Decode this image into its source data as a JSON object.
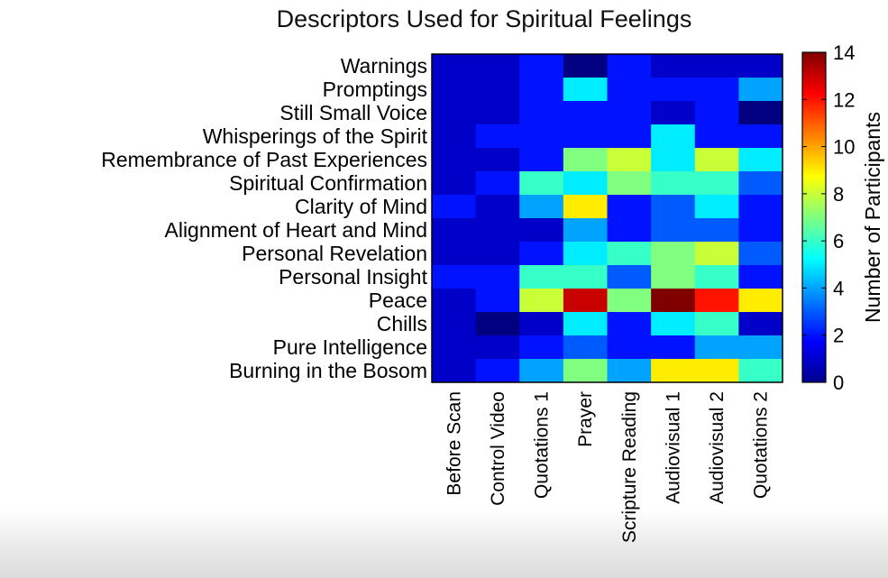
{
  "chart_data": {
    "type": "heatmap",
    "title": "Descriptors Used for Spiritual Feelings",
    "rows": [
      "Warnings",
      "Promptings",
      "Still Small Voice",
      "Whisperings of the Spirit",
      "Remembrance of Past Experiences",
      "Spiritual Confirmation",
      "Clarity of Mind",
      "Alignment of Heart and Mind",
      "Personal Revelation",
      "Personal Insight",
      "Peace",
      "Chills",
      "Pure Intelligence",
      "Burning in the Bosom"
    ],
    "columns": [
      "Before Scan",
      "Control Video",
      "Quotations 1",
      "Prayer",
      "Scripture Reading",
      "Audiovisual 1",
      "Audiovisual 2",
      "Quotations 2"
    ],
    "values": [
      [
        1,
        1,
        2,
        0,
        2,
        1,
        1,
        1
      ],
      [
        1,
        1,
        2,
        5,
        2,
        2,
        2,
        4
      ],
      [
        1,
        1,
        2,
        2,
        2,
        1,
        2,
        0
      ],
      [
        1,
        2,
        2,
        2,
        2,
        5,
        2,
        2
      ],
      [
        1,
        1,
        2,
        7,
        8,
        5,
        8,
        5
      ],
      [
        1,
        2,
        6,
        5,
        7,
        6,
        6,
        3
      ],
      [
        2,
        1,
        4,
        9,
        2,
        3,
        5,
        2
      ],
      [
        1,
        1,
        1,
        4,
        2,
        3,
        3,
        2
      ],
      [
        1,
        1,
        2,
        5,
        6,
        7,
        8,
        3
      ],
      [
        2,
        2,
        6,
        6,
        3,
        7,
        6,
        2
      ],
      [
        1,
        2,
        8,
        13,
        7,
        14,
        12,
        9
      ],
      [
        1,
        0,
        1,
        5,
        2,
        5,
        6,
        1
      ],
      [
        1,
        1,
        2,
        3,
        2,
        2,
        4,
        4
      ],
      [
        1,
        2,
        4,
        7,
        4,
        9,
        9,
        6
      ]
    ],
    "colorbar": {
      "label": "Number of Participants",
      "ticks": [
        0,
        2,
        4,
        6,
        8,
        10,
        12,
        14
      ],
      "range": [
        0,
        14
      ],
      "colormap": "jet"
    }
  }
}
